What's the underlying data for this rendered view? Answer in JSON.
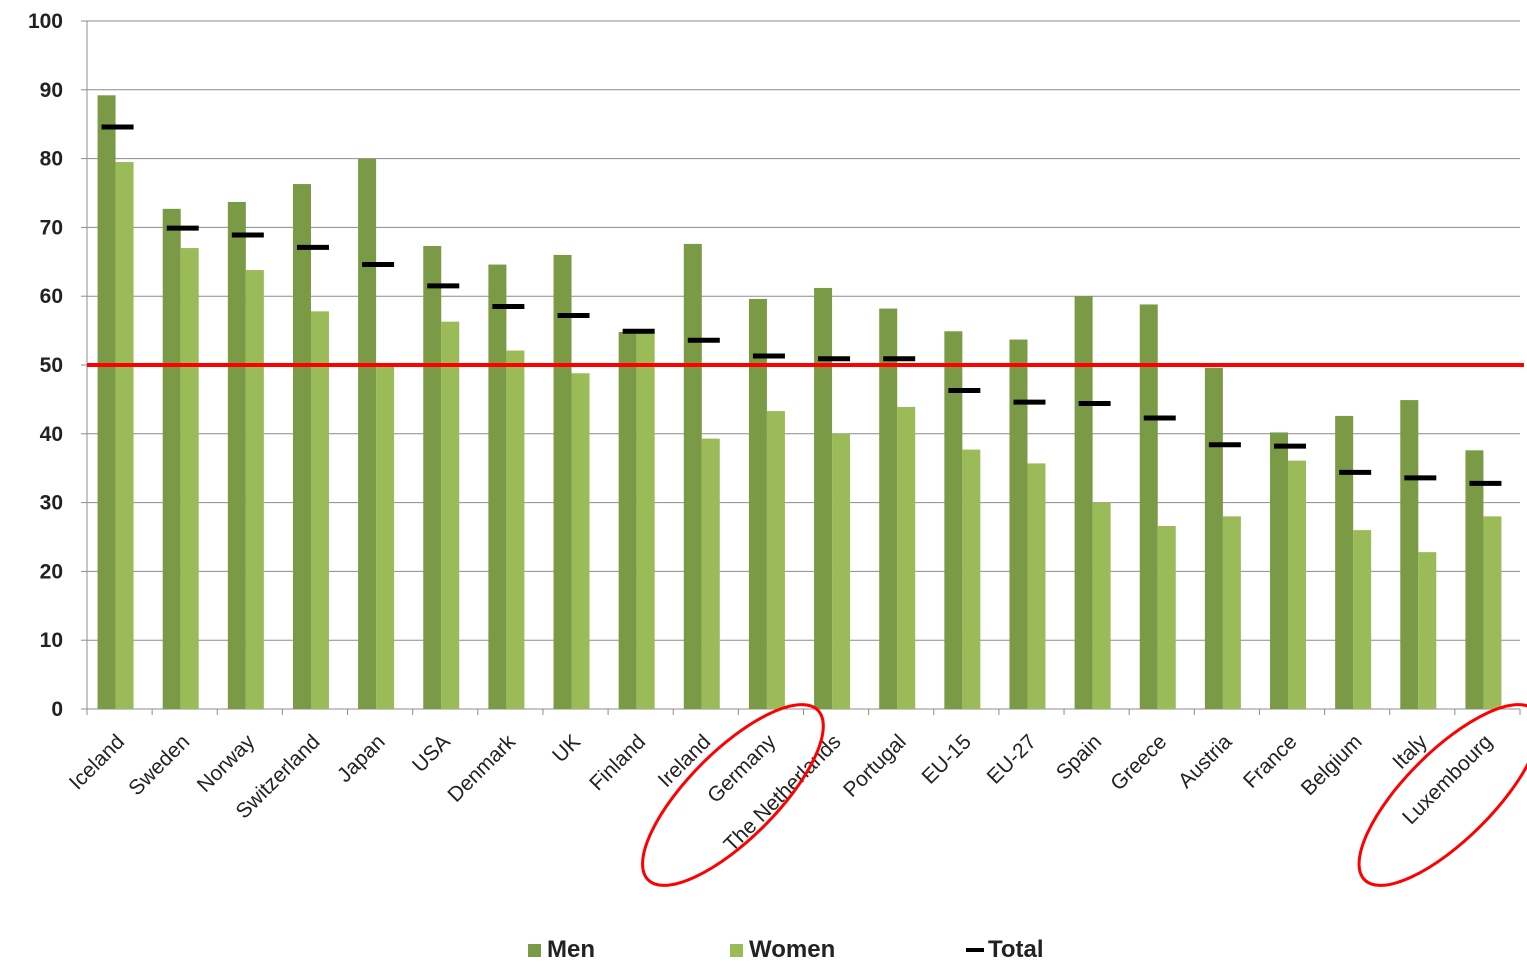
{
  "chart_data": {
    "type": "bar",
    "categories": [
      "Iceland",
      "Sweden",
      "Norway",
      "Switzerland",
      "Japan",
      "USA",
      "Denmark",
      "UK",
      "Finland",
      "Ireland",
      "Germany",
      "The Netherlands",
      "Portugal",
      "EU-15",
      "EU-27",
      "Spain",
      "Greece",
      "Austria",
      "France",
      "Belgium",
      "Italy",
      "Luxembourg"
    ],
    "series": [
      {
        "name": "Men",
        "color": "#7a9a45",
        "values": [
          89.2,
          72.7,
          73.7,
          76.3,
          80.0,
          67.3,
          64.6,
          66.0,
          54.8,
          67.6,
          59.6,
          61.2,
          58.2,
          54.9,
          53.7,
          60.0,
          58.8,
          49.6,
          40.2,
          42.6,
          44.9,
          37.6
        ]
      },
      {
        "name": "Women",
        "color": "#9bbb59",
        "values": [
          79.5,
          67.0,
          63.8,
          57.8,
          49.8,
          56.3,
          52.1,
          48.8,
          54.8,
          39.3,
          43.3,
          40.0,
          43.9,
          37.7,
          35.7,
          30.0,
          26.6,
          28.0,
          36.1,
          26.0,
          22.8,
          28.0
        ]
      },
      {
        "name": "Total",
        "color": "#000000",
        "marker": "dash",
        "values": [
          84.6,
          69.9,
          68.9,
          67.1,
          64.6,
          61.5,
          58.5,
          57.2,
          54.9,
          53.6,
          51.3,
          50.9,
          50.9,
          46.3,
          44.6,
          44.4,
          42.3,
          38.4,
          38.2,
          34.4,
          33.6,
          32.8
        ]
      }
    ],
    "ylim": [
      0,
      100
    ],
    "yticks": [
      0,
      10,
      20,
      30,
      40,
      50,
      60,
      70,
      80,
      90,
      100
    ],
    "reference_line": {
      "value": 50,
      "color": "#ff0000"
    },
    "highlighted_categories": [
      "Germany",
      "Luxembourg"
    ],
    "highlight_color": "#ff0000",
    "grid": true,
    "legend_position": "bottom"
  },
  "legend": {
    "men": "Men",
    "women": "Women",
    "total": "Total"
  }
}
